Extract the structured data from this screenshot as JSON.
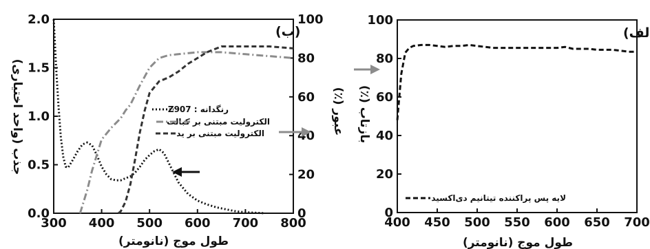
{
  "chart_data": [
    {
      "type": "line",
      "panel_label": "(ب)",
      "xlabel": "طول موج (نانومتر)",
      "ylabel": "جذب (واحد اختیاری)",
      "y2label": "عبور (٪)",
      "xlim": [
        300,
        800
      ],
      "ylim": [
        0,
        2.0
      ],
      "y2lim": [
        0,
        100
      ],
      "xticks": [
        "300",
        "400",
        "500",
        "600",
        "700",
        "800"
      ],
      "yticks": [
        "0.0",
        "0.5",
        "1.0",
        "1.5",
        "2.0"
      ],
      "y2ticks": [
        "0",
        "20",
        "40",
        "60",
        "80",
        "100"
      ],
      "series": [
        {
          "name": "رنگدانه : Z907",
          "axis": "left",
          "color": "#111111",
          "dash": "dotted",
          "x": [
            300,
            305,
            310,
            315,
            320,
            325,
            330,
            340,
            350,
            360,
            370,
            380,
            390,
            400,
            410,
            420,
            430,
            440,
            450,
            460,
            470,
            480,
            490,
            500,
            510,
            520,
            530,
            540,
            550,
            560,
            580,
            600,
            620,
            640,
            660,
            680,
            700,
            720,
            740
          ],
          "y": [
            2.0,
            1.5,
            1.1,
            0.78,
            0.58,
            0.48,
            0.47,
            0.55,
            0.64,
            0.71,
            0.73,
            0.7,
            0.6,
            0.48,
            0.4,
            0.35,
            0.34,
            0.34,
            0.36,
            0.38,
            0.42,
            0.48,
            0.55,
            0.6,
            0.64,
            0.66,
            0.62,
            0.52,
            0.42,
            0.32,
            0.2,
            0.13,
            0.09,
            0.06,
            0.04,
            0.02,
            0.01,
            0.005,
            0.0
          ]
        },
        {
          "name": "الکترولیت مبتنی بر کبالت",
          "axis": "right",
          "color": "#8c8c8c",
          "dash": "dashdot",
          "x": [
            355,
            360,
            370,
            380,
            390,
            400,
            420,
            440,
            450,
            460,
            480,
            500,
            520,
            540,
            560,
            600,
            650,
            700,
            750,
            800
          ],
          "y": [
            0,
            4,
            12,
            22,
            30,
            38,
            44,
            49,
            53,
            56,
            66,
            75,
            80,
            81.5,
            82,
            83,
            83,
            82,
            81,
            80
          ]
        },
        {
          "name": "الکترولیت مبتنی بر ید",
          "axis": "right",
          "color": "#333333",
          "dash": "dashed",
          "x": [
            435,
            440,
            450,
            460,
            470,
            480,
            490,
            500,
            520,
            540,
            560,
            580,
            600,
            620,
            650,
            680,
            700,
            750,
            800
          ],
          "y": [
            0,
            1,
            6,
            15,
            28,
            42,
            53,
            62,
            68,
            70,
            73,
            77,
            80,
            83,
            86,
            86,
            86,
            86,
            85
          ]
        }
      ],
      "legend_position": "center",
      "arrows": [
        "gray arrow pointing right to the right axis at x≈440",
        "gray arrow pointing right to the right axis at x≈590",
        "black arrow pointing left to the left axis at x≈530"
      ]
    },
    {
      "type": "line",
      "panel_label": "(الف)",
      "xlabel": "طول موج (نانومتر)",
      "ylabel": "بازتاب (٪)",
      "xlim": [
        400,
        700
      ],
      "ylim": [
        0,
        100
      ],
      "xticks": [
        "400",
        "450",
        "500",
        "550",
        "600",
        "650",
        "700"
      ],
      "yticks": [
        "0",
        "20",
        "40",
        "60",
        "80",
        "100"
      ],
      "series": [
        {
          "name": "لایه پس پراکننده تیتانیم دی‌اکسید",
          "axis": "left",
          "color": "#111111",
          "dash": "dashed",
          "x": [
            400,
            405,
            410,
            415,
            420,
            430,
            440,
            450,
            460,
            470,
            480,
            490,
            500,
            510,
            520,
            530,
            540,
            550,
            560,
            570,
            580,
            590,
            600,
            610,
            620,
            630,
            640,
            650,
            660,
            670,
            680,
            690,
            700
          ],
          "y": [
            48,
            72,
            83,
            85.5,
            86.5,
            87,
            87,
            86.5,
            86,
            86.5,
            86.5,
            87,
            86.5,
            86,
            85.5,
            85.5,
            85.5,
            85.5,
            85.5,
            85.5,
            85.5,
            85.5,
            85.5,
            86,
            85,
            85,
            85,
            84.5,
            84.5,
            84.5,
            84,
            83.5,
            83.5
          ]
        }
      ],
      "legend_position": "bottom-left"
    }
  ]
}
